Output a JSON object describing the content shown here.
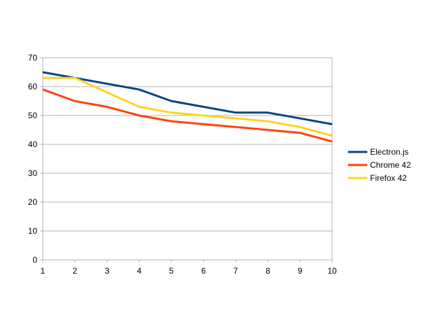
{
  "chart_data": {
    "type": "line",
    "title": "",
    "xlabel": "",
    "ylabel": "",
    "x": [
      1,
      2,
      3,
      4,
      5,
      6,
      7,
      8,
      9,
      10
    ],
    "x_tick_labels": [
      "1",
      "2",
      "3",
      "4",
      "5",
      "6",
      "7",
      "8",
      "9",
      "10"
    ],
    "ylim": [
      0,
      70
    ],
    "y_tick_labels": [
      "0",
      "10",
      "20",
      "30",
      "40",
      "50",
      "60",
      "70"
    ],
    "grid": true,
    "legend_position": "right",
    "series": [
      {
        "name": "Electron.js",
        "color": "#004586",
        "values": [
          65,
          63,
          61,
          59,
          55,
          53,
          51,
          51,
          49,
          47
        ]
      },
      {
        "name": "Chrome 42",
        "color": "#ff420e",
        "values": [
          59,
          55,
          53,
          50,
          48,
          47,
          46,
          45,
          44,
          41
        ]
      },
      {
        "name": "Firefox 42",
        "color": "#ffd320",
        "values": [
          63,
          63,
          58,
          53,
          51,
          50,
          49,
          48,
          46,
          43
        ]
      }
    ]
  }
}
